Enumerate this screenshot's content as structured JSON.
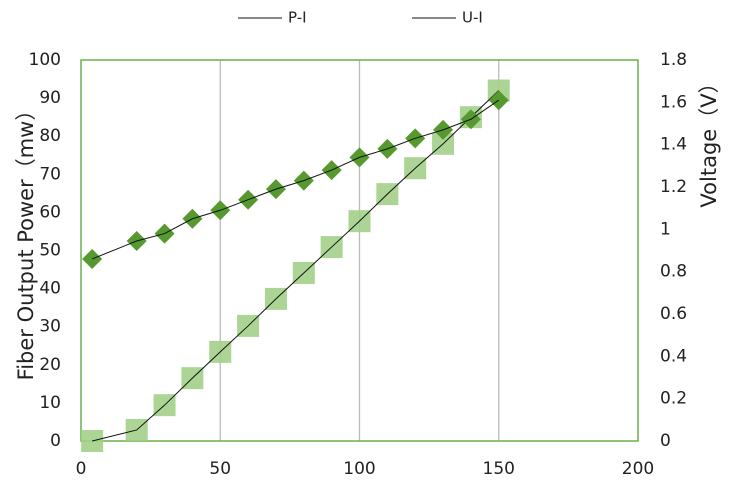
{
  "chart_data": {
    "type": "scatter",
    "series": [
      {
        "name": "P-I",
        "color": "#a3d08a",
        "marker": "square",
        "x": [
          4,
          20,
          30,
          40,
          50,
          60,
          70,
          80,
          90,
          100,
          110,
          120,
          130,
          140,
          150
        ],
        "values": [
          0,
          2.9,
          9.4,
          16.5,
          23.4,
          30.2,
          37.3,
          44.1,
          50.9,
          57.7,
          64.8,
          71.6,
          78,
          85,
          92
        ]
      },
      {
        "name": "U-I",
        "color": "#56992e",
        "marker": "diamond",
        "axis": "y2",
        "x": [
          4,
          20,
          30,
          40,
          50,
          60,
          70,
          80,
          90,
          100,
          110,
          120,
          130,
          140,
          150
        ],
        "values": [
          0.86,
          0.945,
          0.98,
          1.05,
          1.09,
          1.14,
          1.19,
          1.23,
          1.28,
          1.34,
          1.38,
          1.43,
          1.47,
          1.52,
          1.61
        ]
      }
    ],
    "y_label": "Fiber Output Power（mw）",
    "y2_label": "Voltage（V）",
    "xlim": [
      0,
      200
    ],
    "xticks": [
      0,
      50,
      100,
      150,
      200
    ],
    "ylim": [
      0,
      100
    ],
    "yticks": [
      0,
      10,
      20,
      30,
      40,
      50,
      60,
      70,
      80,
      90,
      100
    ],
    "y2lim": [
      0,
      1.8
    ],
    "y2ticks": [
      0,
      0.2,
      0.4,
      0.6,
      0.8,
      1,
      1.2,
      1.4,
      1.6,
      1.8
    ],
    "grid": "x",
    "frame_color": "#6ab04c"
  }
}
